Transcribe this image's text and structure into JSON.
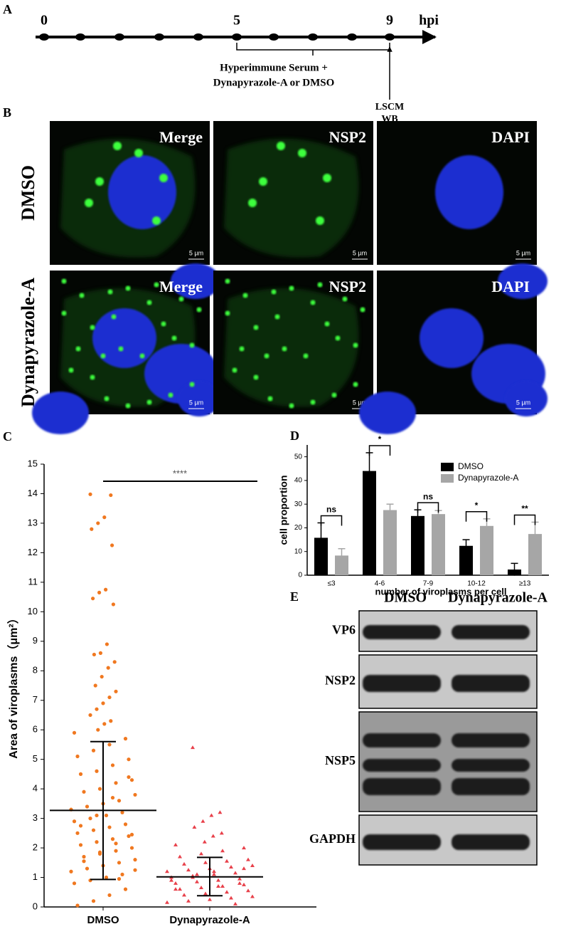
{
  "panel_a": {
    "label": "A",
    "timepoints": [
      "0",
      "5",
      "9"
    ],
    "unit": "hpi",
    "treatment": [
      "Hyperimmune Serum +",
      "Dynapyrazole-A  or  DMSO"
    ],
    "readout": [
      "LSCM",
      "WB"
    ]
  },
  "panel_b": {
    "label": "B",
    "rows": [
      "DMSO",
      "Dynapyrazole-A"
    ],
    "columns": [
      "Merge",
      "NSP2",
      "DAPI"
    ],
    "scale_bar": "5 µm"
  },
  "chart_data": [
    {
      "type": "strip",
      "label": "C",
      "ylabel": "Area of viroplasms（μm²）",
      "categories": [
        "DMSO",
        "Dynapyrazole-A"
      ],
      "ylim": [
        0,
        15
      ],
      "yticks": [
        0,
        1,
        2,
        3,
        4,
        5,
        6,
        7,
        8,
        9,
        10,
        11,
        12,
        13,
        14,
        15
      ],
      "annotation": "****",
      "groups": [
        {
          "color": "#f07820",
          "marker": "circle",
          "mean": 3.27,
          "sd_lower": 0.93,
          "sd_upper": 5.6,
          "values": [
            13.98,
            13.95,
            13.2,
            13.0,
            12.8,
            12.25,
            10.75,
            10.65,
            10.45,
            10.25,
            8.9,
            8.6,
            8.55,
            8.3,
            8.1,
            7.8,
            7.5,
            7.3,
            7.1,
            6.9,
            6.7,
            6.5,
            6.3,
            6.2,
            6.0,
            5.9,
            5.7,
            5.5,
            5.3,
            5.1,
            5.0,
            4.8,
            4.6,
            4.5,
            4.3,
            4.2,
            4.0,
            3.9,
            3.8,
            3.6,
            3.5,
            3.4,
            3.3,
            3.2,
            3.1,
            3.0,
            2.9,
            2.8,
            2.7,
            2.6,
            2.5,
            2.4,
            2.3,
            2.2,
            2.1,
            2.0,
            1.9,
            1.8,
            1.7,
            1.6,
            1.5,
            1.4,
            1.3,
            1.2,
            1.1,
            1.0,
            0.9,
            0.8,
            0.6,
            0.4,
            0.2,
            0.05,
            4.4,
            3.7,
            3.1,
            2.75,
            2.45,
            2.15,
            1.85,
            1.55,
            1.25,
            0.95
          ]
        },
        {
          "color": "#e8404a",
          "marker": "triangle",
          "mean": 1.02,
          "sd_lower": 0.38,
          "sd_upper": 1.68,
          "values": [
            5.4,
            3.2,
            3.1,
            2.9,
            2.7,
            2.5,
            2.4,
            2.2,
            2.1,
            2.0,
            1.9,
            1.8,
            1.7,
            1.6,
            1.55,
            1.5,
            1.45,
            1.4,
            1.35,
            1.3,
            1.25,
            1.2,
            1.15,
            1.1,
            1.05,
            1.0,
            0.95,
            0.9,
            0.85,
            0.8,
            0.75,
            0.7,
            0.65,
            0.6,
            0.55,
            0.5,
            0.45,
            0.4,
            0.35,
            0.3,
            0.25,
            0.2,
            0.15,
            0.1,
            1.2,
            1.0,
            0.9,
            0.8,
            0.7,
            1.1,
            0.6,
            1.3
          ]
        }
      ]
    },
    {
      "type": "bar",
      "label": "D",
      "ylabel": "cell proportion",
      "xlabel": "number of viroplasms per cell",
      "categories": [
        "≤3",
        "4-6",
        "7-9",
        "10-12",
        "≥13"
      ],
      "ylim": [
        0,
        55
      ],
      "yticks": [
        0,
        10,
        20,
        30,
        40,
        50
      ],
      "annotations": [
        "ns",
        "*",
        "ns",
        "*",
        "**"
      ],
      "legend": "top-right",
      "series": [
        {
          "name": "DMSO",
          "color": "#000000",
          "values": [
            15.8,
            44,
            25,
            12.4,
            2.4
          ],
          "errors": [
            6.3,
            7.7,
            2.6,
            2.6,
            2.6
          ]
        },
        {
          "name": "Dynapyrazole-A",
          "color": "#a6a6a6",
          "values": [
            8.3,
            27.5,
            25.8,
            20.8,
            17.4
          ],
          "errors": [
            2.9,
            2.5,
            1.5,
            3,
            5
          ]
        }
      ]
    }
  ],
  "panel_e": {
    "label": "E",
    "columns": [
      "DMSO",
      "Dynapyrazole-A"
    ],
    "rows": [
      "VP6",
      "NSP2",
      "NSP5",
      "GAPDH"
    ]
  }
}
